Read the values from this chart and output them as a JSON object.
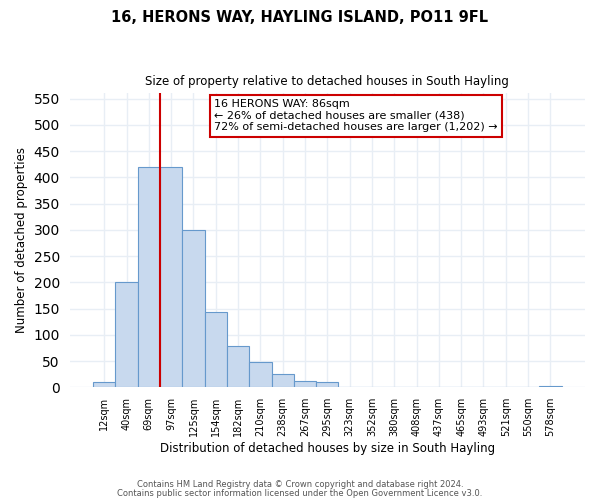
{
  "title": "16, HERONS WAY, HAYLING ISLAND, PO11 9FL",
  "subtitle": "Size of property relative to detached houses in South Hayling",
  "xlabel": "Distribution of detached houses by size in South Hayling",
  "ylabel": "Number of detached properties",
  "footnote1": "Contains HM Land Registry data © Crown copyright and database right 2024.",
  "footnote2": "Contains public sector information licensed under the Open Government Licence v3.0.",
  "bar_labels": [
    "12sqm",
    "40sqm",
    "69sqm",
    "97sqm",
    "125sqm",
    "154sqm",
    "182sqm",
    "210sqm",
    "238sqm",
    "267sqm",
    "295sqm",
    "323sqm",
    "352sqm",
    "380sqm",
    "408sqm",
    "437sqm",
    "465sqm",
    "493sqm",
    "521sqm",
    "550sqm",
    "578sqm"
  ],
  "bar_values": [
    10,
    200,
    420,
    420,
    300,
    143,
    78,
    49,
    26,
    13,
    10,
    0,
    0,
    0,
    0,
    0,
    0,
    0,
    0,
    0,
    3
  ],
  "bar_color": "#c8d9ee",
  "bar_edge_color": "#6699cc",
  "property_line_x": 2.5,
  "property_line_color": "#cc0000",
  "annotation_title": "16 HERONS WAY: 86sqm",
  "annotation_line1": "← 26% of detached houses are smaller (438)",
  "annotation_line2": "72% of semi-detached houses are larger (1,202) →",
  "annotation_box_color": "#cc0000",
  "ylim": [
    0,
    560
  ],
  "yticks": [
    0,
    50,
    100,
    150,
    200,
    250,
    300,
    350,
    400,
    450,
    500,
    550
  ],
  "figsize": [
    6.0,
    5.0
  ],
  "dpi": 100,
  "background_color": "#ffffff",
  "plot_background_color": "#ffffff",
  "grid_color": "#e8eef5"
}
